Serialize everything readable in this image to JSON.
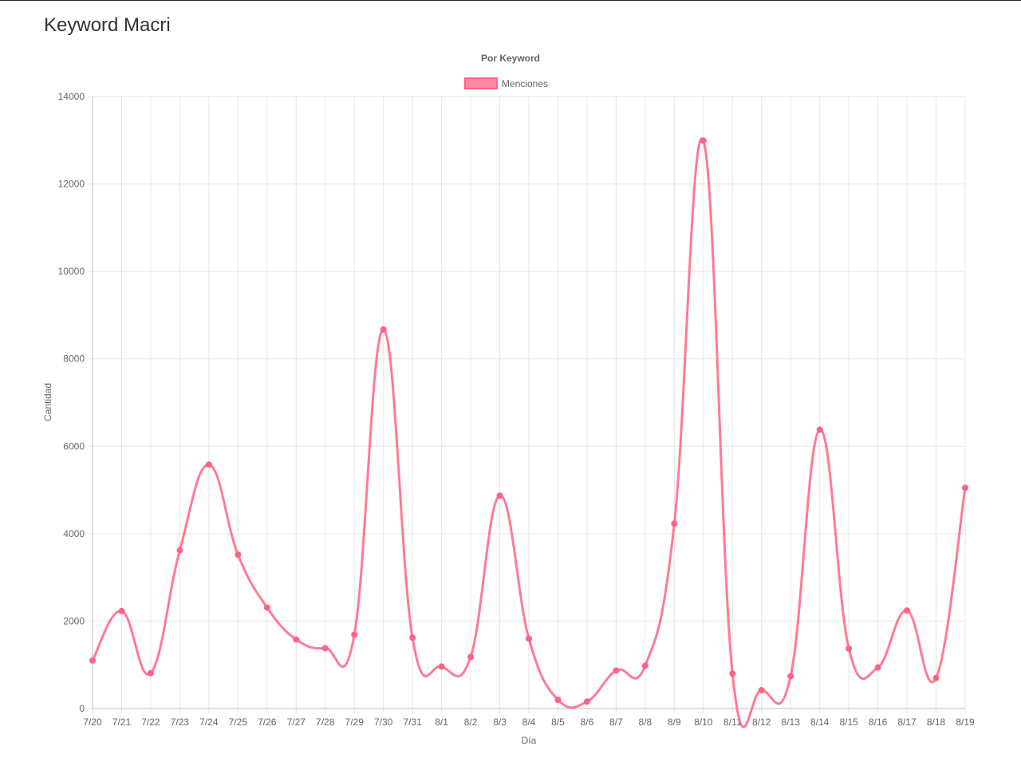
{
  "page": {
    "title": "Keyword Macri"
  },
  "chart_data": {
    "type": "line",
    "title": "Por Keyword",
    "xlabel": "Día",
    "ylabel": "Cantidad",
    "ylim": [
      0,
      14000
    ],
    "yticks": [
      0,
      2000,
      4000,
      6000,
      8000,
      10000,
      12000,
      14000
    ],
    "grid": true,
    "legend_position": "top",
    "categories": [
      "7/20",
      "7/21",
      "7/22",
      "7/23",
      "7/24",
      "7/25",
      "7/26",
      "7/27",
      "7/28",
      "7/29",
      "7/30",
      "7/31",
      "8/1",
      "8/2",
      "8/3",
      "8/4",
      "8/5",
      "8/6",
      "8/7",
      "8/8",
      "8/9",
      "8/10",
      "8/11",
      "8/12",
      "8/13",
      "8/14",
      "8/15",
      "8/16",
      "8/17",
      "8/18",
      "8/19"
    ],
    "series": [
      {
        "name": "Menciones",
        "color": "#ff6384",
        "fill": "#ff8aa3",
        "values": [
          1100,
          2230,
          810,
          3620,
          5580,
          3520,
          2310,
          1580,
          1380,
          1690,
          8670,
          1620,
          960,
          1180,
          4870,
          1600,
          200,
          160,
          870,
          980,
          4230,
          12990,
          800,
          420,
          740,
          6380,
          1370,
          940,
          2240,
          700,
          5050
        ]
      }
    ]
  }
}
